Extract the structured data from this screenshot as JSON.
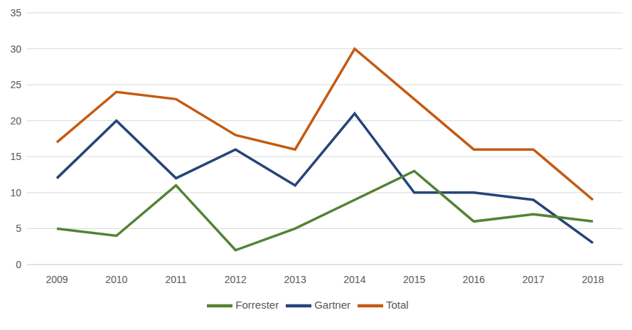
{
  "chart_data": {
    "type": "line",
    "categories": [
      "2009",
      "2010",
      "2011",
      "2012",
      "2013",
      "2014",
      "2015",
      "2016",
      "2017",
      "2018"
    ],
    "series": [
      {
        "name": "Gartner",
        "color": "#264478",
        "values": [
          12,
          20,
          12,
          16,
          11,
          21,
          10,
          10,
          9,
          3
        ]
      },
      {
        "name": "Forrester",
        "color": "#548235",
        "values": [
          5,
          4,
          11,
          2,
          5,
          9,
          13,
          6,
          7,
          6
        ]
      },
      {
        "name": "Total",
        "color": "#c55a11",
        "values": [
          17,
          24,
          23,
          18,
          16,
          30,
          23,
          16,
          16,
          9
        ]
      }
    ],
    "ylim": [
      0,
      35
    ],
    "yticks": [
      0,
      5,
      10,
      15,
      20,
      25,
      30,
      35
    ],
    "grid": true,
    "legend": "bottom"
  }
}
